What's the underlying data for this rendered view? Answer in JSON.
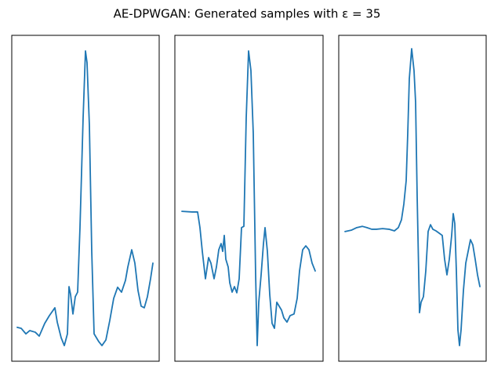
{
  "title": "AE-DPWGAN: Generated samples with ε = 35",
  "chart_data": [
    {
      "type": "line",
      "xlim": [
        0,
        188
      ],
      "ylim": [
        0,
        100
      ],
      "x": [
        7,
        12,
        18,
        23,
        30,
        35,
        42,
        48,
        55,
        58,
        63,
        67,
        71,
        73,
        75,
        78,
        81,
        84,
        87,
        91,
        94,
        96,
        99,
        102,
        105,
        111,
        115,
        120,
        125,
        130,
        135,
        140,
        145,
        148,
        153,
        157,
        161,
        165,
        169,
        173,
        177,
        180
      ],
      "series": [
        {
          "color": "#1f77b4",
          "values": [
            10.4,
            10.1,
            8.4,
            9.4,
            8.9,
            7.7,
            11.6,
            14.0,
            16.4,
            12.0,
            7.2,
            4.8,
            8.4,
            22.9,
            20.5,
            14.5,
            19.8,
            21.2,
            41.0,
            74.7,
            95.2,
            91.6,
            72.3,
            33.7,
            8.4,
            6.0,
            4.8,
            6.5,
            12.5,
            19.3,
            22.7,
            21.2,
            24.8,
            28.9,
            34.2,
            30.1,
            21.7,
            16.9,
            16.4,
            19.8,
            25.3,
            30.1
          ]
        }
      ]
    },
    {
      "type": "line",
      "xlim": [
        0,
        189
      ],
      "ylim": [
        0,
        100
      ],
      "x": [
        9,
        22,
        29,
        32,
        35,
        39,
        43,
        46,
        50,
        53,
        56,
        59,
        61,
        63,
        65,
        68,
        70,
        73,
        76,
        79,
        82,
        85,
        88,
        91,
        94,
        97,
        100,
        103,
        105,
        107,
        110,
        113,
        115,
        118,
        121,
        124,
        127,
        130,
        133,
        136,
        139,
        143,
        147,
        152,
        156,
        159,
        163,
        167,
        171,
        175,
        179
      ],
      "series": [
        {
          "color": "#1f77b4",
          "values": [
            46.0,
            45.8,
            45.8,
            41.0,
            33.7,
            25.3,
            31.8,
            30.1,
            25.3,
            28.9,
            34.2,
            36.1,
            33.7,
            38.6,
            31.3,
            28.9,
            24.1,
            21.2,
            22.9,
            21.0,
            25.3,
            41.0,
            41.4,
            74.7,
            95.2,
            89.2,
            69.9,
            26.5,
            4.8,
            18.1,
            26.5,
            36.1,
            41.0,
            33.7,
            20.5,
            11.6,
            10.1,
            18.1,
            16.9,
            15.7,
            13.3,
            12.0,
            14.0,
            14.5,
            19.3,
            27.7,
            34.2,
            35.4,
            34.2,
            30.1,
            27.7
          ]
        }
      ]
    },
    {
      "type": "line",
      "xlim": [
        0,
        188
      ],
      "ylim": [
        0,
        100
      ],
      "x": [
        8,
        16,
        23,
        30,
        36,
        42,
        48,
        56,
        64,
        71,
        76,
        80,
        83,
        86,
        88,
        90,
        93,
        96,
        98,
        100,
        103,
        105,
        108,
        111,
        114,
        117,
        120,
        124,
        128,
        132,
        135,
        138,
        141,
        144,
        146,
        148,
        150,
        152,
        154,
        156,
        159,
        162,
        165,
        168,
        171,
        174,
        177,
        180
      ],
      "series": [
        {
          "color": "#1f77b4",
          "values": [
            39.8,
            40.2,
            41.0,
            41.4,
            41.0,
            40.5,
            40.5,
            40.7,
            40.5,
            40.0,
            41.0,
            43.4,
            48.2,
            55.4,
            69.9,
            86.7,
            95.9,
            89.2,
            79.5,
            50.6,
            14.9,
            18.1,
            19.8,
            27.7,
            39.8,
            41.9,
            40.5,
            40.0,
            39.3,
            38.6,
            31.3,
            26.5,
            31.3,
            38.6,
            45.3,
            42.2,
            27.7,
            9.6,
            4.8,
            9.6,
            21.7,
            30.1,
            33.7,
            37.3,
            35.7,
            31.3,
            26.5,
            22.9
          ]
        }
      ]
    }
  ]
}
